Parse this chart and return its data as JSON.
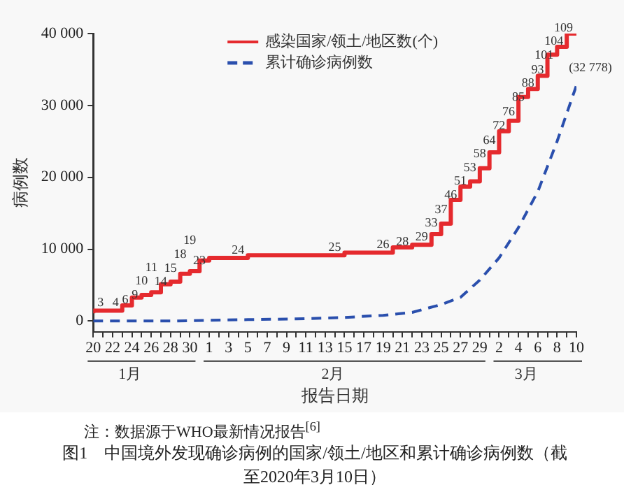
{
  "chart_data": {
    "type": "line",
    "title": "图1　中国境外发现确诊病例的国家/领土/地区和累计确诊病例数（截至2020年3月10日）",
    "xlabel": "报告日期",
    "ylabel": "病例数",
    "annotations": [
      "1月",
      "2月",
      "3月",
      "注：数据源于WHO最新情况报告$^{[6]}$"
    ],
    "xlim": [
      "2020-01-20",
      "2020-03-10"
    ],
    "xticks": [
      {
        "value": "2020-01-20",
        "label": "20"
      },
      {
        "value": "2020-01-21",
        "label": null
      },
      {
        "value": "2020-01-22",
        "label": "22"
      },
      {
        "value": "2020-01-23",
        "label": null
      },
      {
        "value": "2020-01-24",
        "label": "24"
      },
      {
        "value": "2020-01-25",
        "label": null
      },
      {
        "value": "2020-01-26",
        "label": "26"
      },
      {
        "value": "2020-01-27",
        "label": null
      },
      {
        "value": "2020-01-28",
        "label": "28"
      },
      {
        "value": "2020-01-29",
        "label": null
      },
      {
        "value": "2020-01-30",
        "label": "30"
      },
      {
        "value": "2020-01-31",
        "label": null
      },
      {
        "value": "2020-02-01",
        "label": "1"
      },
      {
        "value": "2020-02-02",
        "label": null
      },
      {
        "value": "2020-02-03",
        "label": "3"
      },
      {
        "value": "2020-02-04",
        "label": null
      },
      {
        "value": "2020-02-05",
        "label": "5"
      },
      {
        "value": "2020-02-06",
        "label": null
      },
      {
        "value": "2020-02-07",
        "label": "7"
      },
      {
        "value": "2020-02-08",
        "label": null
      },
      {
        "value": "2020-02-09",
        "label": "9"
      },
      {
        "value": "2020-02-10",
        "label": null
      },
      {
        "value": "2020-02-11",
        "label": "11"
      },
      {
        "value": "2020-02-12",
        "label": null
      },
      {
        "value": "2020-02-13",
        "label": "13"
      },
      {
        "value": "2020-02-14",
        "label": null
      },
      {
        "value": "2020-02-15",
        "label": "15"
      },
      {
        "value": "2020-02-16",
        "label": null
      },
      {
        "value": "2020-02-17",
        "label": "17"
      },
      {
        "value": "2020-02-18",
        "label": null
      },
      {
        "value": "2020-02-19",
        "label": "19"
      },
      {
        "value": "2020-02-20",
        "label": null
      },
      {
        "value": "2020-02-21",
        "label": "21"
      },
      {
        "value": "2020-02-22",
        "label": null
      },
      {
        "value": "2020-02-23",
        "label": "23"
      },
      {
        "value": "2020-02-24",
        "label": null
      },
      {
        "value": "2020-02-25",
        "label": "25"
      },
      {
        "value": "2020-02-26",
        "label": null
      },
      {
        "value": "2020-02-27",
        "label": "27"
      },
      {
        "value": "2020-02-28",
        "label": null
      },
      {
        "value": "2020-02-29",
        "label": "29"
      },
      {
        "value": "2020-03-01",
        "label": null
      },
      {
        "value": "2020-03-02",
        "label": "2"
      },
      {
        "value": "2020-03-03",
        "label": null
      },
      {
        "value": "2020-03-04",
        "label": "4"
      },
      {
        "value": "2020-03-05",
        "label": null
      },
      {
        "value": "2020-03-06",
        "label": "6"
      },
      {
        "value": "2020-03-07",
        "label": null
      },
      {
        "value": "2020-03-08",
        "label": "8"
      },
      {
        "value": "2020-03-09",
        "label": null
      },
      {
        "value": "2020-03-10",
        "label": "10"
      }
    ],
    "ylim": [
      -1500,
      40000
    ],
    "yticks": [
      0,
      {
        "value": 10000,
        "label": "10 000"
      },
      {
        "value": 20000,
        "label": "20 000"
      },
      {
        "value": 30000,
        "label": "30 000"
      },
      {
        "value": 40000,
        "label": "40 000"
      }
    ],
    "y2lim": [
      -4,
      109
    ],
    "grid": false,
    "legend": "top",
    "marker": "none",
    "series": [
      {
        "name": "感染国家/领土/地区数(个)",
        "type": "step",
        "axis": "y2",
        "color": "#e52a2e",
        "line_style": "solid",
        "x": [
          "2020-01-20",
          "2020-01-23",
          "2020-01-24",
          "2020-01-25",
          "2020-01-26",
          "2020-01-27",
          "2020-01-28",
          "2020-01-29",
          "2020-01-30",
          "2020-01-31",
          "2020-02-01",
          "2020-02-05",
          "2020-02-15",
          "2020-02-20",
          "2020-02-22",
          "2020-02-24",
          "2020-02-25",
          "2020-02-26",
          "2020-02-27",
          "2020-02-28",
          "2020-02-29",
          "2020-03-01",
          "2020-03-02",
          "2020-03-03",
          "2020-03-04",
          "2020-03-05",
          "2020-03-06",
          "2020-03-07",
          "2020-03-08",
          "2020-03-09",
          "2020-03-10"
        ],
        "values": [
          3,
          4,
          6,
          9,
          10,
          11,
          14,
          15,
          18,
          19,
          23,
          24,
          25,
          26,
          28,
          29,
          33,
          37,
          46,
          51,
          53,
          58,
          64,
          72,
          76,
          85,
          88,
          93,
          101,
          104,
          109
        ],
        "value_labels": [
          "3",
          "4",
          "6",
          "9",
          "10",
          "11",
          "14",
          "15",
          "18",
          "19",
          "23",
          "24",
          "25",
          "26",
          "28",
          "29",
          "33",
          "37",
          "46",
          "51",
          "53",
          "58",
          "64",
          "72",
          "76",
          "85",
          "88",
          "93",
          "101",
          "104",
          "109"
        ]
      },
      {
        "name": "累计确诊病例数",
        "type": "line",
        "color": "#2a4fad",
        "line_style": "dashed",
        "x": [
          "2020-01-20",
          "2020-01-24",
          "2020-01-28",
          "2020-02-01",
          "2020-02-05",
          "2020-02-10",
          "2020-02-15",
          "2020-02-19",
          "2020-02-22",
          "2020-02-25",
          "2020-02-27",
          "2020-02-29",
          "2020-03-02",
          "2020-03-04",
          "2020-03-06",
          "2020-03-08",
          "2020-03-10"
        ],
        "values": [
          0,
          0,
          0,
          100,
          200,
          300,
          500,
          800,
          1200,
          2300,
          3300,
          5700,
          8800,
          13000,
          18000,
          25000,
          32778
        ],
        "value_labels": [
          null,
          null,
          null,
          null,
          null,
          null,
          null,
          null,
          null,
          null,
          null,
          null,
          null,
          null,
          null,
          null,
          "(32 778)"
        ]
      }
    ]
  }
}
